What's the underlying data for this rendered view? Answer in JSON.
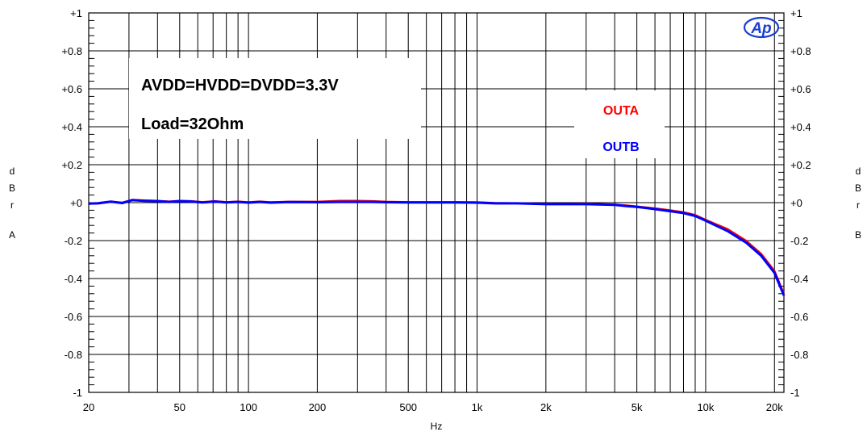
{
  "chart_data": {
    "type": "line",
    "title": "",
    "xlabel": "Hz",
    "ylabel_left": [
      "d",
      "B",
      "r",
      "A"
    ],
    "ylabel_right": [
      "d",
      "B",
      "r",
      "B"
    ],
    "x_scale": "log",
    "xlim": [
      20,
      22000
    ],
    "ylim": [
      -1,
      1
    ],
    "grid": true,
    "x_ticks": [
      {
        "value": 20,
        "label": "20"
      },
      {
        "value": 50,
        "label": "50"
      },
      {
        "value": 100,
        "label": "100"
      },
      {
        "value": 200,
        "label": "200"
      },
      {
        "value": 500,
        "label": "500"
      },
      {
        "value": 1000,
        "label": "1k"
      },
      {
        "value": 2000,
        "label": "2k"
      },
      {
        "value": 5000,
        "label": "5k"
      },
      {
        "value": 10000,
        "label": "10k"
      },
      {
        "value": 20000,
        "label": "20k"
      }
    ],
    "y_ticks": [
      {
        "value": 1,
        "label": "+1"
      },
      {
        "value": 0.8,
        "label": "+0.8"
      },
      {
        "value": 0.6,
        "label": "+0.6"
      },
      {
        "value": 0.4,
        "label": "+0.4"
      },
      {
        "value": 0.2,
        "label": "+0.2"
      },
      {
        "value": 0,
        "label": "+0"
      },
      {
        "value": -0.2,
        "label": "-0.2"
      },
      {
        "value": -0.4,
        "label": "-0.4"
      },
      {
        "value": -0.6,
        "label": "-0.6"
      },
      {
        "value": -0.8,
        "label": "-0.8"
      },
      {
        "value": -1,
        "label": "-1"
      }
    ],
    "annotations": [
      "AVDD=HVDD=DVDD=3.3V",
      "Load=32Ohm"
    ],
    "legend_position": "top-right",
    "series": [
      {
        "name": "OUTA",
        "color": "#ff0000",
        "x": [
          20,
          22,
          25,
          28,
          31,
          35,
          40,
          45,
          50,
          56,
          63,
          71,
          80,
          90,
          100,
          112,
          125,
          150,
          200,
          250,
          300,
          350,
          400,
          500,
          600,
          800,
          1000,
          1200,
          1500,
          2000,
          2500,
          3000,
          4000,
          4500,
          5000,
          6000,
          7000,
          8000,
          9000,
          10000,
          12500,
          15000,
          17500,
          20000,
          22000
        ],
        "y": [
          -0.005,
          -0.005,
          0.005,
          0,
          0.015,
          0.012,
          0.01,
          0.006,
          0.01,
          0.008,
          0.003,
          0.008,
          0.003,
          0.006,
          0.002,
          0.006,
          0.002,
          0.005,
          0.005,
          0.01,
          0.01,
          0.008,
          0.005,
          0.003,
          0.003,
          0.003,
          0.002,
          -0.002,
          -0.003,
          -0.006,
          -0.007,
          -0.005,
          -0.01,
          -0.015,
          -0.02,
          -0.03,
          -0.04,
          -0.05,
          -0.065,
          -0.09,
          -0.14,
          -0.2,
          -0.27,
          -0.36,
          -0.48
        ]
      },
      {
        "name": "OUTB",
        "color": "#0000ff",
        "x": [
          20,
          22,
          25,
          28,
          31,
          35,
          40,
          45,
          50,
          56,
          63,
          71,
          80,
          90,
          100,
          112,
          125,
          150,
          200,
          250,
          300,
          350,
          400,
          500,
          600,
          800,
          1000,
          1200,
          1500,
          2000,
          2500,
          3000,
          4000,
          4500,
          5000,
          6000,
          7000,
          8000,
          9000,
          10000,
          12500,
          15000,
          17500,
          20000,
          22000
        ],
        "y": [
          -0.005,
          -0.003,
          0.005,
          -0.002,
          0.013,
          0.01,
          0.008,
          0.004,
          0.008,
          0.006,
          0.001,
          0.006,
          0.001,
          0.004,
          0,
          0.004,
          0,
          0.003,
          0.002,
          0.004,
          0.004,
          0.004,
          0.002,
          0.001,
          0.001,
          0.001,
          0,
          -0.004,
          -0.004,
          -0.008,
          -0.008,
          -0.008,
          -0.012,
          -0.018,
          -0.022,
          -0.034,
          -0.045,
          -0.055,
          -0.07,
          -0.095,
          -0.15,
          -0.21,
          -0.28,
          -0.37,
          -0.49
        ]
      }
    ],
    "logo_text": "Ap"
  }
}
